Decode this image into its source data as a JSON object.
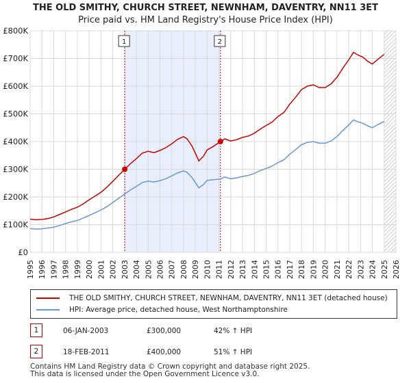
{
  "chart_data": {
    "type": "line",
    "title": "THE OLD SMITHY, CHURCH STREET, NEWNHAM, DAVENTRY, NN11 3ET",
    "subtitle": "Price paid vs. HM Land Registry's House Price Index (HPI)",
    "xlim": [
      1995,
      2026
    ],
    "ylim": [
      0,
      800000
    ],
    "x_ticks": [
      1995,
      1996,
      1997,
      1998,
      1999,
      2000,
      2001,
      2002,
      2003,
      2004,
      2005,
      2006,
      2007,
      2008,
      2009,
      2010,
      2011,
      2012,
      2013,
      2014,
      2015,
      2016,
      2017,
      2018,
      2019,
      2020,
      2021,
      2022,
      2023,
      2024,
      2025,
      2026
    ],
    "y_ticks": [
      {
        "value": 0,
        "label": "£0"
      },
      {
        "value": 100000,
        "label": "£100K"
      },
      {
        "value": 200000,
        "label": "£200K"
      },
      {
        "value": 300000,
        "label": "£300K"
      },
      {
        "value": 400000,
        "label": "£400K"
      },
      {
        "value": 500000,
        "label": "£500K"
      },
      {
        "value": 600000,
        "label": "£600K"
      },
      {
        "value": 700000,
        "label": "£700K"
      },
      {
        "value": 800000,
        "label": "£800K"
      }
    ],
    "shaded_region": [
      2003.02,
      2011.13
    ],
    "future_hatch_from": 2025.0,
    "series": [
      {
        "name": "THE OLD SMITHY, CHURCH STREET, NEWNHAM, DAVENTRY, NN11 3ET (detached house)",
        "color": "#cc0000",
        "points": [
          [
            1995,
            120000
          ],
          [
            1995.5,
            118000
          ],
          [
            1996,
            119000
          ],
          [
            1996.5,
            122000
          ],
          [
            1997,
            128000
          ],
          [
            1997.5,
            137000
          ],
          [
            1998,
            146000
          ],
          [
            1998.5,
            155000
          ],
          [
            1999,
            163000
          ],
          [
            1999.5,
            175000
          ],
          [
            2000,
            190000
          ],
          [
            2000.5,
            203000
          ],
          [
            2001,
            217000
          ],
          [
            2001.5,
            235000
          ],
          [
            2002,
            256000
          ],
          [
            2002.5,
            278000
          ],
          [
            2003.02,
            300000
          ],
          [
            2003.5,
            320000
          ],
          [
            2004,
            338000
          ],
          [
            2004.5,
            358000
          ],
          [
            2005,
            365000
          ],
          [
            2005.5,
            360000
          ],
          [
            2006,
            368000
          ],
          [
            2006.5,
            378000
          ],
          [
            2007,
            392000
          ],
          [
            2007.5,
            408000
          ],
          [
            2008,
            418000
          ],
          [
            2008.3,
            410000
          ],
          [
            2008.7,
            385000
          ],
          [
            2009,
            358000
          ],
          [
            2009.3,
            330000
          ],
          [
            2009.7,
            348000
          ],
          [
            2010,
            370000
          ],
          [
            2010.5,
            382000
          ],
          [
            2011.13,
            400000
          ],
          [
            2011.5,
            410000
          ],
          [
            2012,
            402000
          ],
          [
            2012.5,
            407000
          ],
          [
            2013,
            415000
          ],
          [
            2013.5,
            420000
          ],
          [
            2014,
            430000
          ],
          [
            2014.5,
            445000
          ],
          [
            2015,
            458000
          ],
          [
            2015.5,
            470000
          ],
          [
            2016,
            490000
          ],
          [
            2016.5,
            505000
          ],
          [
            2017,
            535000
          ],
          [
            2017.5,
            560000
          ],
          [
            2018,
            588000
          ],
          [
            2018.5,
            600000
          ],
          [
            2019,
            605000
          ],
          [
            2019.5,
            595000
          ],
          [
            2020,
            595000
          ],
          [
            2020.5,
            608000
          ],
          [
            2021,
            632000
          ],
          [
            2021.5,
            665000
          ],
          [
            2022,
            695000
          ],
          [
            2022.4,
            722000
          ],
          [
            2022.8,
            712000
          ],
          [
            2023.2,
            705000
          ],
          [
            2023.6,
            690000
          ],
          [
            2024,
            680000
          ],
          [
            2024.5,
            698000
          ],
          [
            2025,
            715000
          ]
        ]
      },
      {
        "name": "HPI: Average price, detached house, West Northamptonshire",
        "color": "#6a97cf",
        "points": [
          [
            1995,
            86000
          ],
          [
            1995.5,
            84000
          ],
          [
            1996,
            85000
          ],
          [
            1996.5,
            88000
          ],
          [
            1997,
            91000
          ],
          [
            1997.5,
            97000
          ],
          [
            1998,
            104000
          ],
          [
            1998.5,
            110000
          ],
          [
            1999,
            115000
          ],
          [
            1999.5,
            124000
          ],
          [
            2000,
            133000
          ],
          [
            2000.5,
            143000
          ],
          [
            2001,
            153000
          ],
          [
            2001.5,
            165000
          ],
          [
            2002,
            180000
          ],
          [
            2002.5,
            195000
          ],
          [
            2003.02,
            211000
          ],
          [
            2003.5,
            225000
          ],
          [
            2004,
            238000
          ],
          [
            2004.5,
            252000
          ],
          [
            2005,
            257000
          ],
          [
            2005.5,
            254000
          ],
          [
            2006,
            259000
          ],
          [
            2006.5,
            266000
          ],
          [
            2007,
            276000
          ],
          [
            2007.5,
            287000
          ],
          [
            2008,
            294000
          ],
          [
            2008.3,
            289000
          ],
          [
            2008.7,
            271000
          ],
          [
            2009,
            252000
          ],
          [
            2009.3,
            233000
          ],
          [
            2009.7,
            245000
          ],
          [
            2010,
            260000
          ],
          [
            2010.5,
            262000
          ],
          [
            2011.13,
            265000
          ],
          [
            2011.5,
            272000
          ],
          [
            2012,
            266000
          ],
          [
            2012.5,
            269000
          ],
          [
            2013,
            274000
          ],
          [
            2013.5,
            278000
          ],
          [
            2014,
            285000
          ],
          [
            2014.5,
            295000
          ],
          [
            2015,
            303000
          ],
          [
            2015.5,
            311000
          ],
          [
            2016,
            324000
          ],
          [
            2016.5,
            334000
          ],
          [
            2017,
            354000
          ],
          [
            2017.5,
            371000
          ],
          [
            2018,
            389000
          ],
          [
            2018.5,
            397000
          ],
          [
            2019,
            400000
          ],
          [
            2019.5,
            394000
          ],
          [
            2020,
            394000
          ],
          [
            2020.5,
            402000
          ],
          [
            2021,
            418000
          ],
          [
            2021.5,
            440000
          ],
          [
            2022,
            460000
          ],
          [
            2022.4,
            478000
          ],
          [
            2022.8,
            471000
          ],
          [
            2023.2,
            466000
          ],
          [
            2023.6,
            457000
          ],
          [
            2024,
            450000
          ],
          [
            2024.5,
            462000
          ],
          [
            2025,
            473000
          ]
        ]
      }
    ],
    "sales": [
      {
        "label": "1",
        "x": 2003.02,
        "y": 300000
      },
      {
        "label": "2",
        "x": 2011.13,
        "y": 400000
      }
    ]
  },
  "legend": {
    "property_label": "THE OLD SMITHY, CHURCH STREET, NEWNHAM, DAVENTRY, NN11 3ET (detached house)",
    "hpi_label": "HPI: Average price, detached house, West Northamptonshire"
  },
  "sales_table": [
    {
      "num": "1",
      "date": "06-JAN-2003",
      "price": "£300,000",
      "hpi": "42% ↑ HPI"
    },
    {
      "num": "2",
      "date": "18-FEB-2011",
      "price": "£400,000",
      "hpi": "51% ↑ HPI"
    }
  ],
  "colors": {
    "property": "#cc0000",
    "hpi": "#6a97cf",
    "shade": "#e8eefb",
    "marker_box": "#b00000"
  },
  "footer": {
    "line1": "Contains HM Land Registry data © Crown copyright and database right 2025.",
    "line2": "This data is licensed under the Open Government Licence v3.0."
  }
}
